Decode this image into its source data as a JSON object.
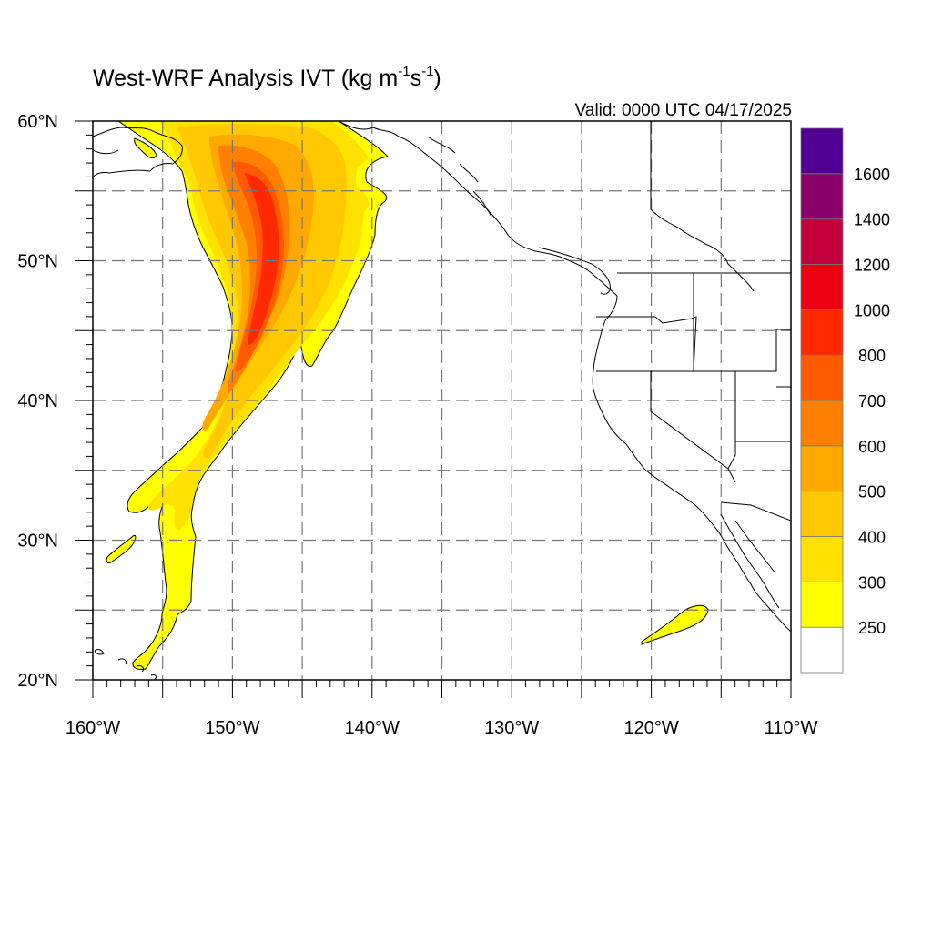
{
  "title": {
    "main": "West-WRF Analysis IVT (kg m",
    "sup1": "-1",
    "mid": "s",
    "sup2": "-1",
    "end": ")"
  },
  "valid": "Valid: 0000 UTC 04/17/2025",
  "map": {
    "lon_range": [
      -160,
      -110
    ],
    "lat_range": [
      20,
      60
    ],
    "grid_lon_step": 5,
    "grid_lat_step": 5,
    "grid_style": "dashed gray"
  },
  "x_ticks": [
    {
      "value": -160,
      "label": "160°W"
    },
    {
      "value": -150,
      "label": "150°W"
    },
    {
      "value": -140,
      "label": "140°W"
    },
    {
      "value": -130,
      "label": "130°W"
    },
    {
      "value": -120,
      "label": "120°W"
    },
    {
      "value": -110,
      "label": "110°W"
    }
  ],
  "y_ticks": [
    {
      "value": 60,
      "label": "60°N"
    },
    {
      "value": 50,
      "label": "50°N"
    },
    {
      "value": 40,
      "label": "40°N"
    },
    {
      "value": 30,
      "label": "30°N"
    },
    {
      "value": 20,
      "label": "20°N"
    }
  ],
  "colorbar": {
    "levels": [
      250,
      300,
      400,
      500,
      600,
      700,
      800,
      1000,
      1200,
      1400,
      1600
    ],
    "labels": [
      "250",
      "300",
      "400",
      "500",
      "600",
      "700",
      "800",
      "1000",
      "1200",
      "1400",
      "1600"
    ],
    "colors": [
      "#ffffff",
      "#ffff00",
      "#ffe100",
      "#ffc800",
      "#ffa800",
      "#ff8000",
      "#ff5a00",
      "#ff2800",
      "#ec0012",
      "#c4003c",
      "#8a006b",
      "#520094"
    ]
  },
  "features": [
    "atmospheric-river",
    "coastline",
    "state-borders"
  ]
}
